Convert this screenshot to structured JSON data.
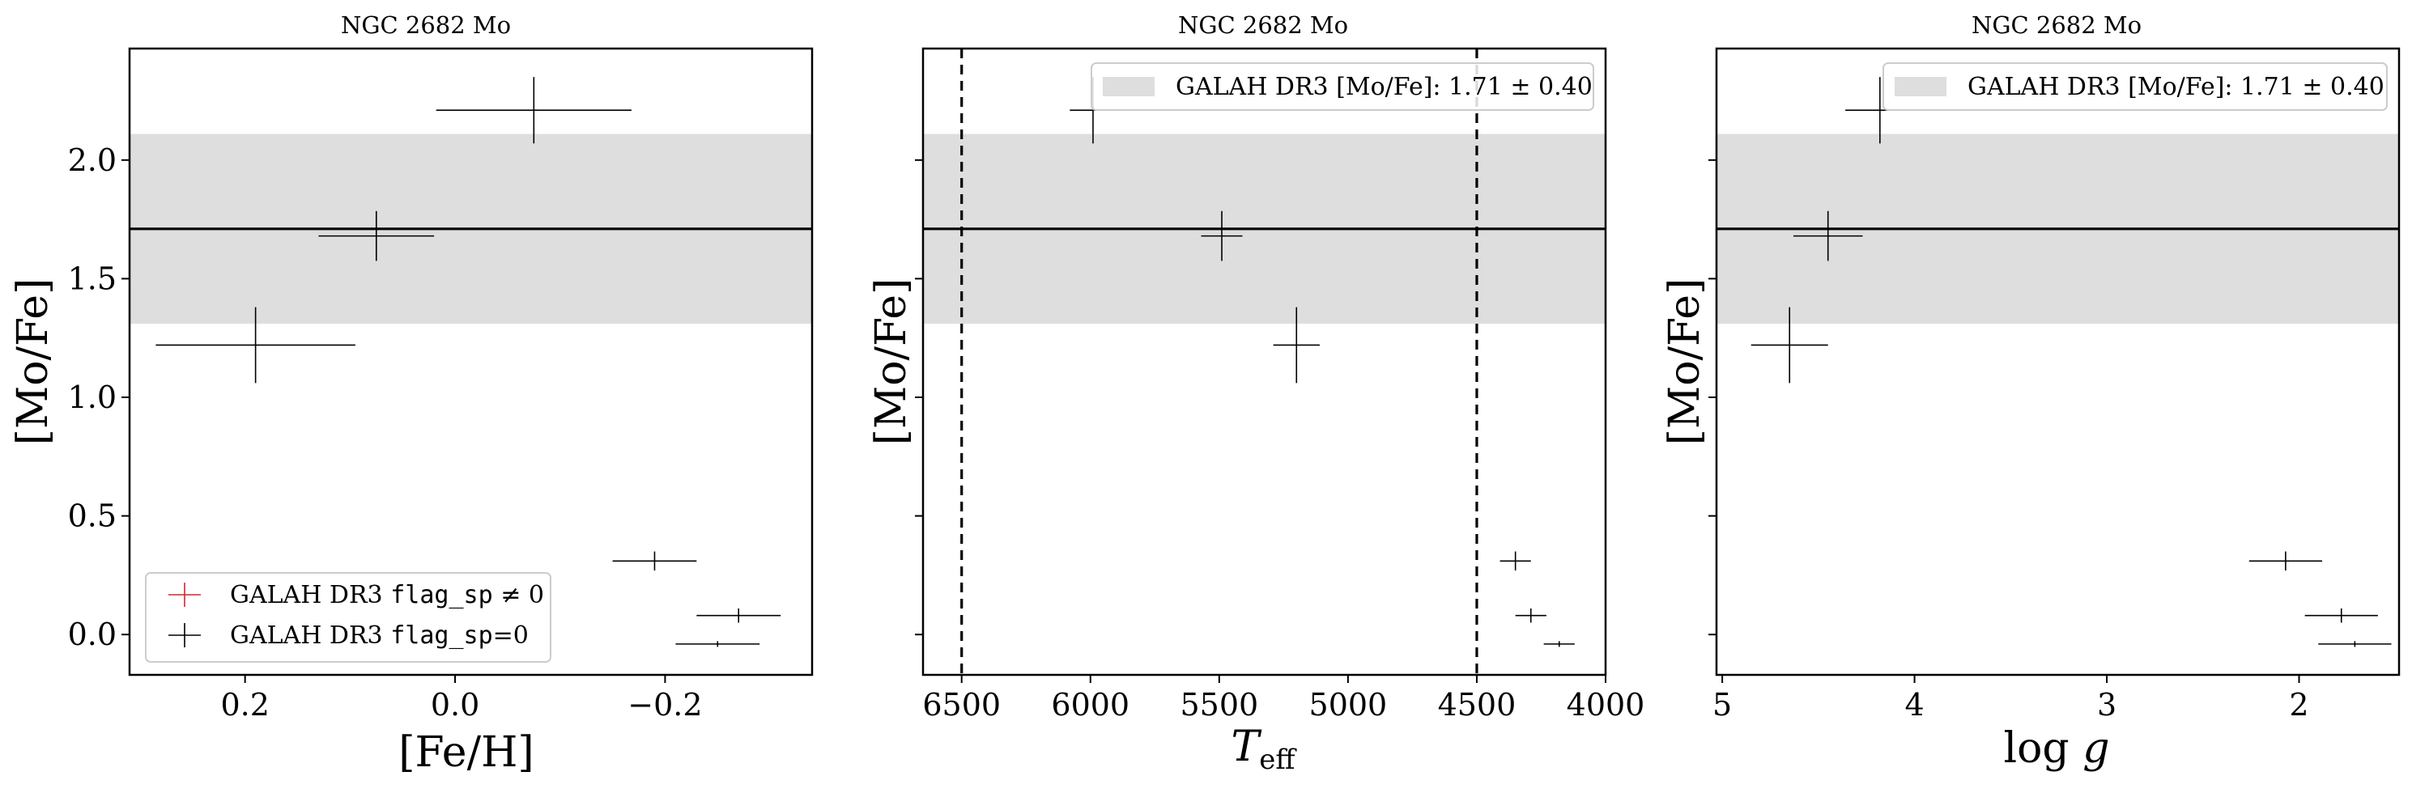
{
  "chart_data": [
    {
      "type": "scatter",
      "title": "NGC 2682 Mo",
      "xlabel": "[Fe/H]",
      "ylabel": "[Mo/Fe]",
      "xlim": [
        0.31,
        -0.34
      ],
      "ylim": [
        -0.17,
        2.47
      ],
      "x_ticks": [
        0.2,
        0.0,
        -0.2
      ],
      "x_tick_labels": [
        "0.2",
        "0.0",
        "−0.2"
      ],
      "y_ticks": [
        0.0,
        0.5,
        1.0,
        1.5,
        2.0
      ],
      "y_tick_labels": [
        "0.0",
        "0.5",
        "1.0",
        "1.5",
        "2.0"
      ],
      "band": {
        "center": 1.71,
        "error": 0.4
      },
      "legend_position": "lower-left",
      "legend": [
        {
          "label_prefix": "GALAH DR3",
          "label_code": "flag_sp",
          "label_suffix": "≠ 0",
          "color": "#d62728"
        },
        {
          "label_prefix": "GALAH DR3",
          "label_code": "flag_sp",
          "label_suffix": "=0",
          "color": "#000000"
        }
      ],
      "series": [
        {
          "name": "GALAH DR3 flag_sp=0",
          "color": "#000000",
          "points": [
            {
              "x": 0.19,
              "y": 1.22,
              "xerr": 0.095,
              "yerr": 0.16
            },
            {
              "x": 0.075,
              "y": 1.68,
              "xerr": 0.055,
              "yerr": 0.105
            },
            {
              "x": -0.075,
              "y": 2.21,
              "xerr": 0.093,
              "yerr": 0.14
            },
            {
              "x": -0.19,
              "y": 0.31,
              "xerr": 0.04,
              "yerr": 0.04
            },
            {
              "x": -0.27,
              "y": 0.08,
              "xerr": 0.04,
              "yerr": 0.03
            },
            {
              "x": -0.25,
              "y": -0.04,
              "xerr": 0.04,
              "yerr": 0.012
            }
          ]
        }
      ]
    },
    {
      "type": "scatter",
      "title": "NGC 2682 Mo",
      "xlabel": "T_eff",
      "ylabel": "[Mo/Fe]",
      "xlim": [
        6650,
        4000
      ],
      "ylim": [
        -0.17,
        2.47
      ],
      "x_ticks": [
        6500,
        6000,
        5500,
        5000,
        4500,
        4000
      ],
      "x_tick_labels": [
        "6500",
        "6000",
        "5500",
        "5000",
        "4500",
        "4000"
      ],
      "y_ticks": [
        0.0,
        0.5,
        1.0,
        1.5,
        2.0
      ],
      "vlines": [
        6500,
        4500
      ],
      "band": {
        "center": 1.71,
        "error": 0.4
      },
      "legend_position": "top-right",
      "legend": [
        {
          "label": "GALAH DR3 [Mo/Fe]: 1.71 ± 0.40",
          "color": "#dedede"
        }
      ],
      "series": [
        {
          "name": "GALAH DR3 flag_sp=0",
          "color": "#000000",
          "points": [
            {
              "x": 5990,
              "y": 2.21,
              "xerr": 90,
              "yerr": 0.14
            },
            {
              "x": 5490,
              "y": 1.68,
              "xerr": 80,
              "yerr": 0.105
            },
            {
              "x": 5200,
              "y": 1.22,
              "xerr": 90,
              "yerr": 0.16
            },
            {
              "x": 4350,
              "y": 0.31,
              "xerr": 60,
              "yerr": 0.04
            },
            {
              "x": 4290,
              "y": 0.08,
              "xerr": 60,
              "yerr": 0.03
            },
            {
              "x": 4180,
              "y": -0.04,
              "xerr": 60,
              "yerr": 0.012
            }
          ]
        }
      ]
    },
    {
      "type": "scatter",
      "title": "NGC 2682 Mo",
      "xlabel": "log g",
      "ylabel": "[Mo/Fe]",
      "xlim": [
        5.03,
        1.48
      ],
      "ylim": [
        -0.17,
        2.47
      ],
      "x_ticks": [
        5,
        4,
        3,
        2
      ],
      "x_tick_labels": [
        "5",
        "4",
        "3",
        "2"
      ],
      "y_ticks": [
        0.0,
        0.5,
        1.0,
        1.5,
        2.0
      ],
      "band": {
        "center": 1.71,
        "error": 0.4
      },
      "legend_position": "top-right",
      "legend": [
        {
          "label": "GALAH DR3 [Mo/Fe]: 1.71 ± 0.40",
          "color": "#dedede"
        }
      ],
      "series": [
        {
          "name": "GALAH DR3 flag_sp=0",
          "color": "#000000",
          "points": [
            {
              "x": 4.65,
              "y": 1.22,
              "xerr": 0.2,
              "yerr": 0.16
            },
            {
              "x": 4.45,
              "y": 1.68,
              "xerr": 0.18,
              "yerr": 0.105
            },
            {
              "x": 4.18,
              "y": 2.21,
              "xerr": 0.18,
              "yerr": 0.14
            },
            {
              "x": 2.07,
              "y": 0.31,
              "xerr": 0.19,
              "yerr": 0.04
            },
            {
              "x": 1.78,
              "y": 0.08,
              "xerr": 0.19,
              "yerr": 0.03
            },
            {
              "x": 1.71,
              "y": -0.04,
              "xerr": 0.19,
              "yerr": 0.012
            }
          ]
        }
      ]
    }
  ]
}
